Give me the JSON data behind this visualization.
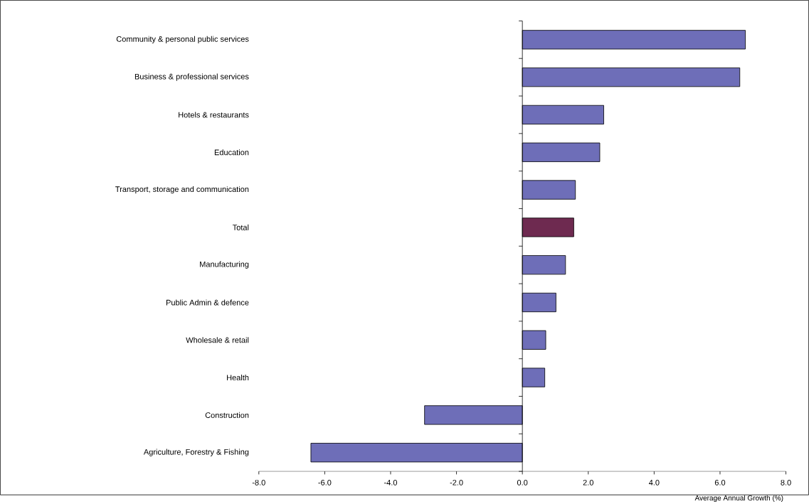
{
  "chart_data": {
    "type": "bar",
    "orientation": "horizontal",
    "xlabel": "Average Annual Growth (%)",
    "categories": [
      "Community & personal public services",
      "Business & professional services",
      "Hotels & restaurants",
      "Education",
      "Transport, storage and communication",
      "Total",
      "Manufacturing",
      "Public Admin & defence",
      "Wholesale & retail",
      "Health",
      "Construction",
      "Agriculture, Forestry & Fishing"
    ],
    "values": [
      6.77,
      6.6,
      2.47,
      2.35,
      1.61,
      1.56,
      1.31,
      1.02,
      0.71,
      0.68,
      -2.97,
      -6.42
    ],
    "colors": [
      "#6e6eb8",
      "#6e6eb8",
      "#6e6eb8",
      "#6e6eb8",
      "#6e6eb8",
      "#6e2a50",
      "#6e6eb8",
      "#6e6eb8",
      "#6e6eb8",
      "#6e6eb8",
      "#6e6eb8",
      "#6e6eb8"
    ],
    "xlim": [
      -8,
      8
    ],
    "xticks": [
      {
        "value": -8,
        "label": "-8.0"
      },
      {
        "value": -6,
        "label": "-6.0"
      },
      {
        "value": -4,
        "label": "-4.0"
      },
      {
        "value": -2,
        "label": "-2.0"
      },
      {
        "value": 0,
        "label": "0.0"
      },
      {
        "value": 2,
        "label": "2.0"
      },
      {
        "value": 4,
        "label": "4.0"
      },
      {
        "value": 6,
        "label": "6.0"
      },
      {
        "value": 8,
        "label": "8.0"
      }
    ],
    "data_labels": false
  }
}
